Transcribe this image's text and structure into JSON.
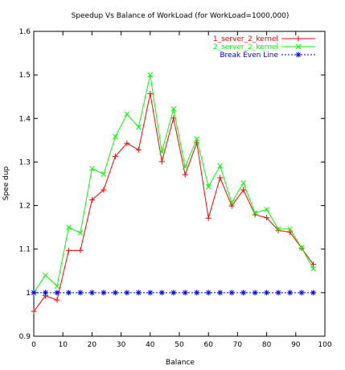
{
  "chart_data": {
    "type": "line",
    "title": "Speedup Vs Balance of WorkLoad (for WorkLoad=1000,000)",
    "xlabel": "Balance",
    "ylabel": "Spee dup",
    "xlim": [
      0,
      100
    ],
    "ylim": [
      0.9,
      1.6
    ],
    "xticks": [
      "0",
      "10",
      "20",
      "30",
      "40",
      "50",
      "60",
      "70",
      "80",
      "90",
      "100"
    ],
    "yticks": [
      "0.9",
      "1",
      "1.1",
      "1.2",
      "1.3",
      "1.4",
      "1.5",
      "1.6"
    ],
    "grid": false,
    "legend_position": "top-right",
    "x": [
      0,
      4,
      8,
      12,
      16,
      20,
      24,
      28,
      32,
      36,
      40,
      44,
      48,
      52,
      56,
      60,
      64,
      68,
      72,
      76,
      80,
      84,
      88,
      92,
      96
    ],
    "series": [
      {
        "name": "1_server_2_kernel",
        "color": "#ff0000",
        "marker": "plus",
        "values": [
          0.957,
          0.993,
          0.983,
          1.097,
          1.097,
          1.213,
          1.236,
          1.313,
          1.343,
          1.328,
          1.457,
          1.301,
          1.401,
          1.271,
          1.344,
          1.171,
          1.264,
          1.199,
          1.236,
          1.179,
          1.172,
          1.143,
          1.139,
          1.102,
          1.065
        ]
      },
      {
        "name": "2_server_2_kernel",
        "color": "#00ff00",
        "marker": "cross",
        "values": [
          1.0,
          1.04,
          1.015,
          1.15,
          1.137,
          1.285,
          1.272,
          1.358,
          1.41,
          1.38,
          1.5,
          1.323,
          1.422,
          1.289,
          1.353,
          1.243,
          1.291,
          1.207,
          1.252,
          1.183,
          1.191,
          1.146,
          1.146,
          1.103,
          1.055
        ]
      },
      {
        "name": "Break Even Line",
        "color": "#0000ff",
        "marker": "star",
        "dashed": true,
        "values": [
          1,
          1,
          1,
          1,
          1,
          1,
          1,
          1,
          1,
          1,
          1,
          1,
          1,
          1,
          1,
          1,
          1,
          1,
          1,
          1,
          1,
          1,
          1,
          1,
          1
        ]
      }
    ]
  }
}
